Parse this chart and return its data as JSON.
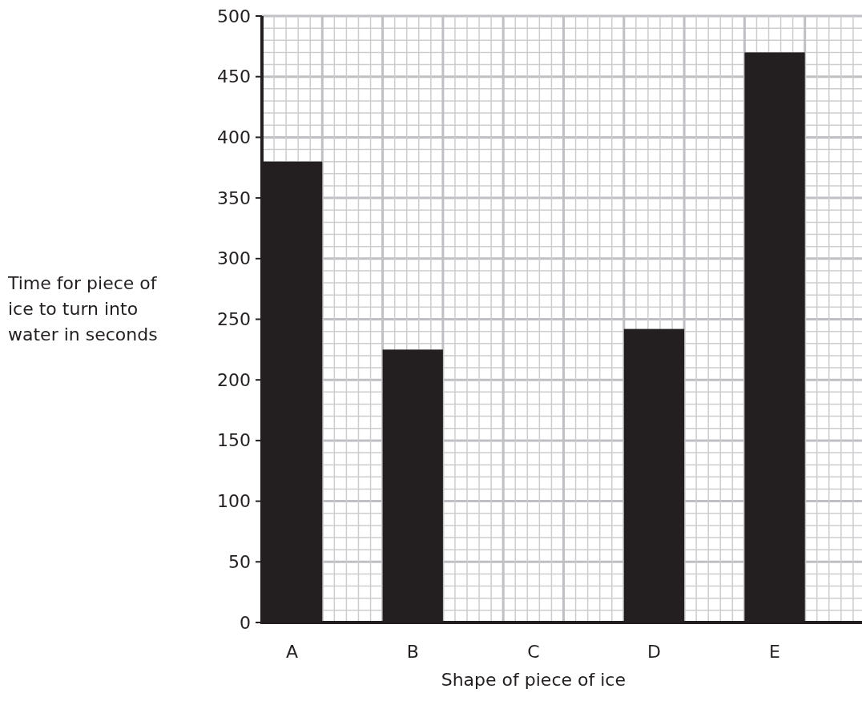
{
  "chart_data": {
    "type": "bar",
    "xlabel": "Shape of piece of ice",
    "ylabel": "Time for piece of ice to turn into water in seconds",
    "categories": [
      "A",
      "B",
      "C",
      "D",
      "E"
    ],
    "values": [
      380,
      225,
      null,
      242,
      470
    ],
    "color": "#231f20",
    "ylim": [
      0,
      500
    ],
    "yticks": [
      0,
      50,
      100,
      150,
      200,
      250,
      300,
      350,
      400,
      450,
      500
    ],
    "grid": true
  }
}
